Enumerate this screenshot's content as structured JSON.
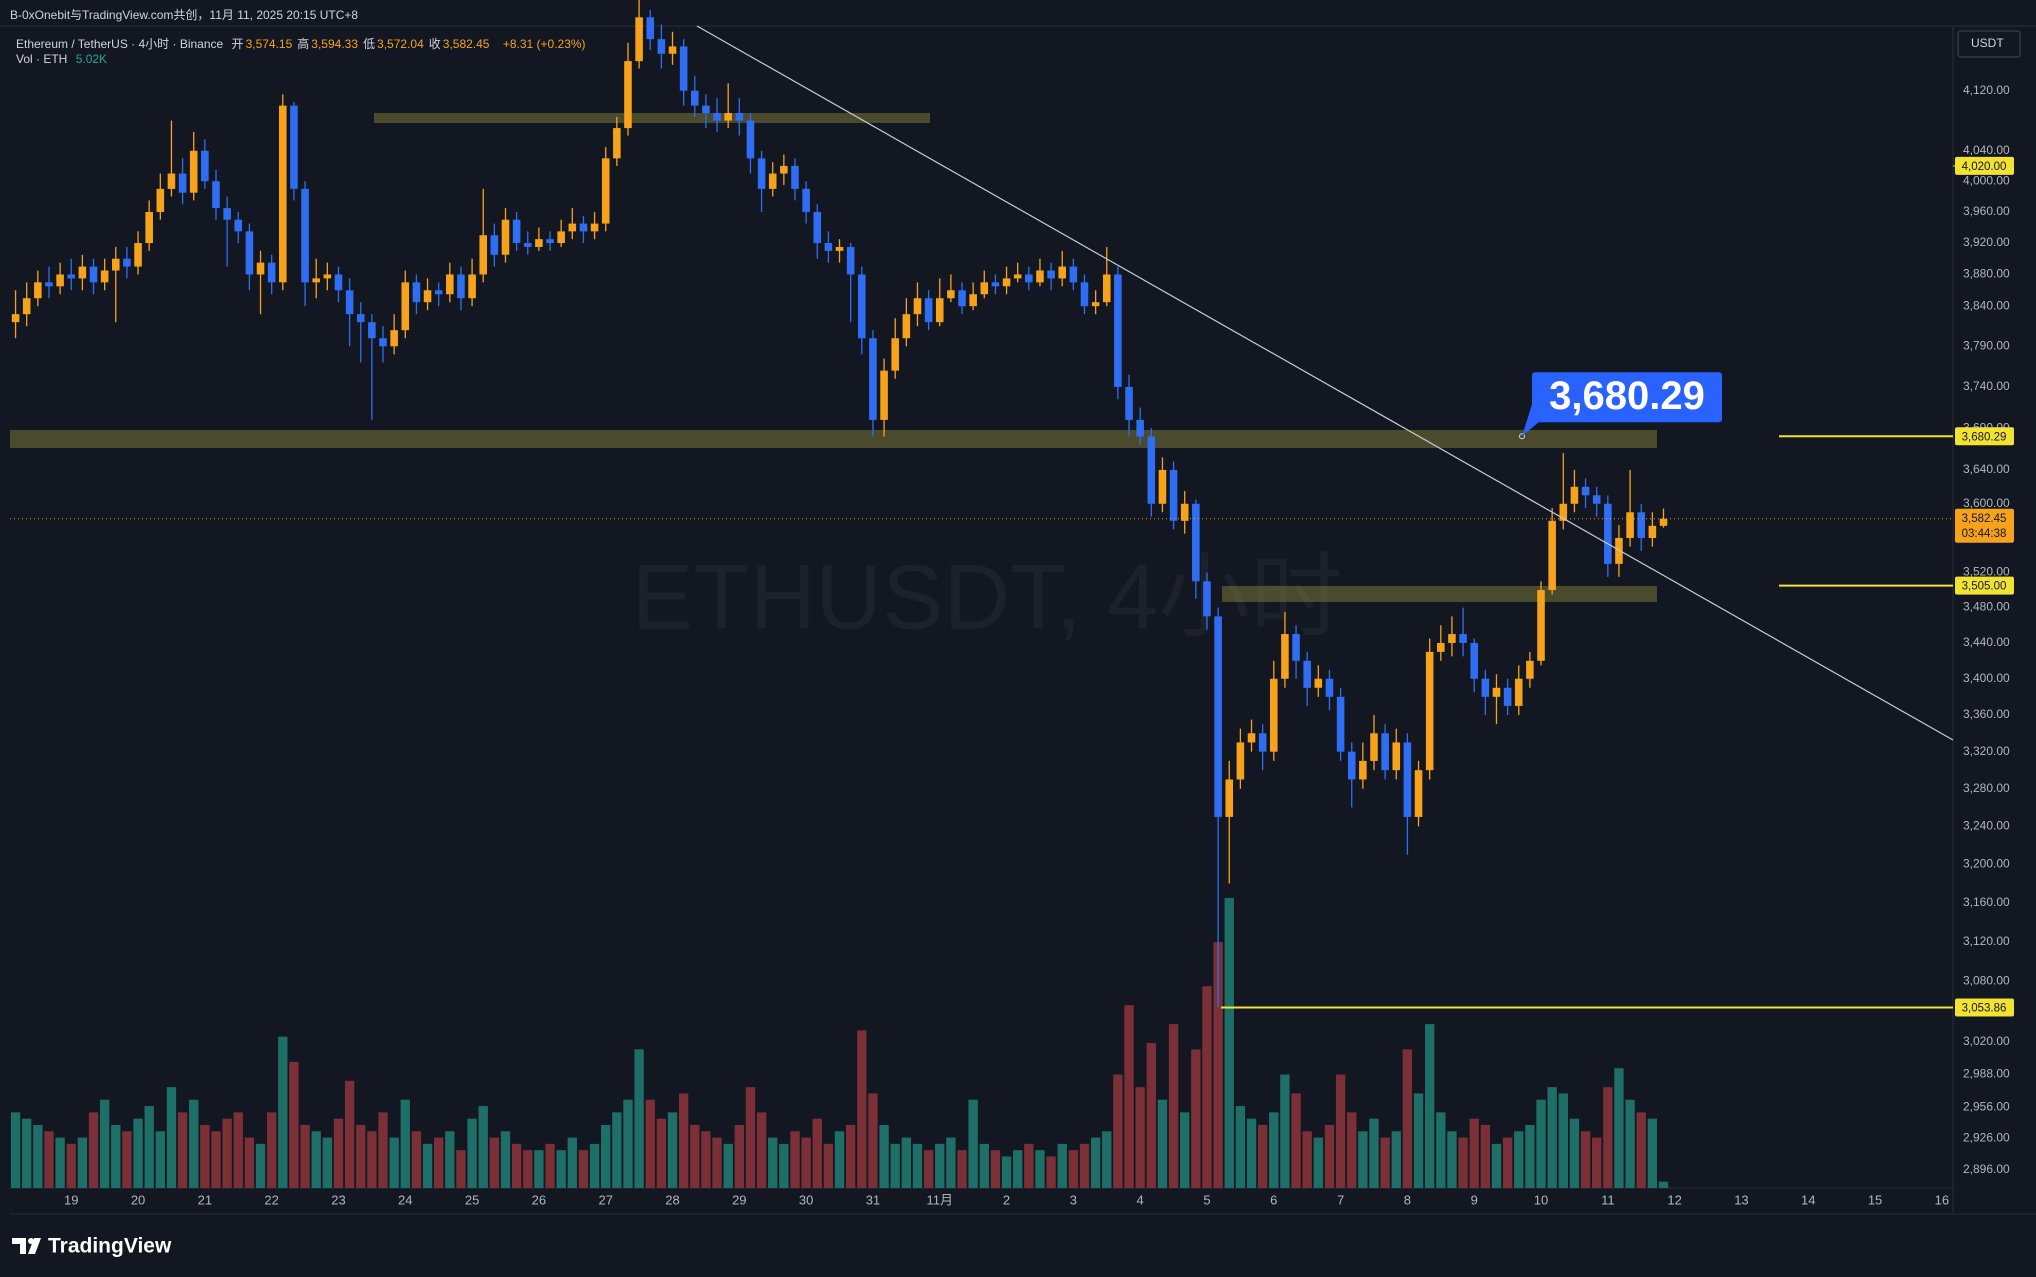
{
  "top_bar": "B-0xOnebit与TradingView.com共创，11月 11, 2025 20:15 UTC+8",
  "footer_logo": "TradingView",
  "chart_data": {
    "type": "candlestick",
    "symbol": "Ethereum / TetherUS · 4小时 · Binance",
    "ohlc_fields": [
      {
        "name": "开",
        "value": "3,574.15"
      },
      {
        "name": "高",
        "value": "3,594.33"
      },
      {
        "name": "低",
        "value": "3,572.04"
      },
      {
        "name": "收",
        "value": "3,582.45"
      }
    ],
    "change": "+8.31 (+0.23%)",
    "volume_title": "Vol · ETH",
    "volume_value_label": "5.02K",
    "watermark": "ETHUSDT, 4小时",
    "currency": "USDT",
    "log_scale": true,
    "grid": false,
    "colors": {
      "up": "#f7a21b",
      "down": "#2f6ef2",
      "volume_up": "#1e6f68",
      "volume_down": "#7b2f37",
      "level": "#f2e232",
      "last": "#f7a21b",
      "callout": "#2962ff"
    },
    "open": [
      3820,
      3830,
      3850,
      3870,
      3865,
      3880,
      3875,
      3890,
      3870,
      3885,
      3900,
      3890,
      3920,
      3960,
      3990,
      4010,
      3985,
      4040,
      4000,
      3965,
      3950,
      3935,
      3880,
      3895,
      3870,
      4100,
      3990,
      3870,
      3875,
      3880,
      3860,
      3830,
      3820,
      3800,
      3790,
      3810,
      3870,
      3845,
      3860,
      3855,
      3880,
      3850,
      3880,
      3930,
      3905,
      3950,
      3920,
      3915,
      3925,
      3920,
      3935,
      3945,
      3935,
      3945,
      4030,
      4070,
      4160,
      4220,
      4190,
      4170,
      4180,
      4120,
      4100,
      4090,
      4080,
      4090,
      4080,
      4030,
      3990,
      4010,
      4020,
      3990,
      3960,
      3920,
      3910,
      3915,
      3880,
      3800,
      3700,
      3760,
      3800,
      3830,
      3850,
      3820,
      3850,
      3860,
      3840,
      3855,
      3870,
      3865,
      3875,
      3880,
      3870,
      3885,
      3875,
      3890,
      3870,
      3840,
      3845,
      3880,
      3740,
      3700,
      3680,
      3600,
      3640,
      3580,
      3600,
      3510,
      3470,
      3250,
      3290,
      3330,
      3340,
      3320,
      3400,
      3450,
      3420,
      3390,
      3400,
      3380,
      3320,
      3290,
      3310,
      3340,
      3300,
      3330,
      3250,
      3300,
      3430,
      3440,
      3450,
      3440,
      3400,
      3380,
      3390,
      3370,
      3400,
      3420,
      3500,
      3580,
      3600,
      3620,
      3610,
      3600,
      3530,
      3560,
      3590,
      3560,
      3574.15
    ],
    "high": [
      3860,
      3870,
      3885,
      3890,
      3895,
      3900,
      3905,
      3900,
      3900,
      3915,
      3915,
      3935,
      3975,
      4010,
      4080,
      4030,
      4065,
      4055,
      4015,
      3980,
      3960,
      3945,
      3910,
      3905,
      4115,
      4105,
      4000,
      3900,
      3895,
      3890,
      3875,
      3845,
      3830,
      3815,
      3830,
      3885,
      3880,
      3875,
      3870,
      3895,
      3890,
      3900,
      3990,
      3945,
      3965,
      3960,
      3935,
      3940,
      3935,
      3950,
      3965,
      3955,
      3960,
      4045,
      4085,
      4185,
      4250,
      4230,
      4210,
      4200,
      4190,
      4140,
      4115,
      4110,
      4130,
      4110,
      4090,
      4040,
      4025,
      4035,
      4030,
      4000,
      3970,
      3935,
      3925,
      3920,
      3890,
      3810,
      3775,
      3825,
      3850,
      3870,
      3860,
      3875,
      3880,
      3870,
      3870,
      3885,
      3880,
      3890,
      3895,
      3890,
      3900,
      3895,
      3910,
      3900,
      3880,
      3860,
      3915,
      3890,
      3755,
      3715,
      3690,
      3655,
      3650,
      3615,
      3605,
      3520,
      3480,
      3310,
      3345,
      3355,
      3350,
      3420,
      3475,
      3460,
      3430,
      3415,
      3410,
      3390,
      3330,
      3330,
      3360,
      3350,
      3345,
      3340,
      3310,
      3445,
      3460,
      3470,
      3480,
      3445,
      3410,
      3405,
      3400,
      3415,
      3430,
      3510,
      3595,
      3660,
      3640,
      3630,
      3620,
      3610,
      3575,
      3640,
      3600,
      3590,
      3594.33
    ],
    "low": [
      3800,
      3815,
      3840,
      3850,
      3855,
      3860,
      3860,
      3855,
      3860,
      3820,
      3875,
      3880,
      3910,
      3950,
      3980,
      3970,
      3975,
      3990,
      3950,
      3890,
      3920,
      3860,
      3830,
      3855,
      3860,
      3975,
      3840,
      3850,
      3860,
      3845,
      3790,
      3770,
      3700,
      3770,
      3780,
      3800,
      3830,
      3835,
      3840,
      3845,
      3835,
      3840,
      3870,
      3890,
      3895,
      3910,
      3905,
      3910,
      3910,
      3915,
      3925,
      3920,
      3925,
      3935,
      4020,
      4060,
      4150,
      4175,
      4150,
      4155,
      4100,
      4085,
      4070,
      4065,
      4070,
      4060,
      4010,
      3960,
      3980,
      3995,
      3975,
      3945,
      3900,
      3895,
      3895,
      3820,
      3780,
      3680,
      3680,
      3750,
      3790,
      3815,
      3810,
      3815,
      3845,
      3830,
      3835,
      3850,
      3855,
      3855,
      3870,
      3860,
      3865,
      3860,
      3865,
      3860,
      3830,
      3830,
      3840,
      3725,
      3680,
      3670,
      3585,
      3590,
      3570,
      3565,
      3490,
      3455,
      3053.86,
      3180,
      3280,
      3320,
      3300,
      3310,
      3390,
      3400,
      3370,
      3380,
      3365,
      3310,
      3260,
      3280,
      3300,
      3290,
      3290,
      3210,
      3240,
      3290,
      3420,
      3425,
      3425,
      3385,
      3360,
      3350,
      3360,
      3360,
      3390,
      3415,
      3495,
      3570,
      3590,
      3595,
      3585,
      3515,
      3515,
      3550,
      3545,
      3550,
      3572.04
    ],
    "close": [
      3830,
      3850,
      3870,
      3865,
      3880,
      3875,
      3890,
      3870,
      3885,
      3900,
      3890,
      3920,
      3960,
      3990,
      4010,
      3985,
      4040,
      4000,
      3965,
      3950,
      3935,
      3880,
      3895,
      3870,
      4100,
      3990,
      3870,
      3875,
      3880,
      3860,
      3830,
      3820,
      3800,
      3790,
      3810,
      3870,
      3845,
      3860,
      3855,
      3880,
      3850,
      3880,
      3930,
      3905,
      3950,
      3920,
      3915,
      3925,
      3920,
      3935,
      3945,
      3935,
      3945,
      4030,
      4070,
      4160,
      4220,
      4190,
      4170,
      4180,
      4120,
      4100,
      4090,
      4080,
      4090,
      4080,
      4030,
      3990,
      4010,
      4020,
      3990,
      3960,
      3920,
      3910,
      3915,
      3880,
      3800,
      3700,
      3760,
      3800,
      3830,
      3850,
      3820,
      3850,
      3860,
      3840,
      3855,
      3870,
      3865,
      3875,
      3880,
      3870,
      3885,
      3875,
      3890,
      3870,
      3840,
      3845,
      3880,
      3740,
      3700,
      3680,
      3600,
      3640,
      3580,
      3600,
      3510,
      3470,
      3250,
      3290,
      3330,
      3340,
      3320,
      3400,
      3450,
      3420,
      3390,
      3400,
      3380,
      3320,
      3290,
      3310,
      3340,
      3300,
      3330,
      3250,
      3300,
      3430,
      3440,
      3450,
      3440,
      3400,
      3380,
      3390,
      3370,
      3400,
      3420,
      3500,
      3580,
      3600,
      3620,
      3610,
      3600,
      3530,
      3560,
      3590,
      3560,
      3574.15,
      3582.45
    ],
    "volume": [
      60,
      55,
      50,
      45,
      40,
      35,
      40,
      60,
      70,
      50,
      45,
      55,
      65,
      45,
      80,
      60,
      70,
      50,
      45,
      55,
      60,
      40,
      35,
      60,
      120,
      100,
      50,
      45,
      40,
      55,
      85,
      50,
      45,
      60,
      40,
      70,
      45,
      35,
      40,
      45,
      30,
      55,
      65,
      40,
      45,
      35,
      30,
      30,
      35,
      30,
      40,
      30,
      35,
      50,
      60,
      70,
      110,
      70,
      55,
      60,
      75,
      50,
      45,
      40,
      35,
      50,
      80,
      60,
      40,
      35,
      45,
      40,
      55,
      35,
      45,
      50,
      125,
      75,
      50,
      35,
      40,
      35,
      30,
      35,
      40,
      30,
      70,
      35,
      30,
      25,
      30,
      35,
      30,
      25,
      35,
      30,
      35,
      40,
      45,
      90,
      145,
      80,
      115,
      70,
      130,
      60,
      110,
      160,
      195,
      230,
      65,
      55,
      50,
      60,
      90,
      75,
      45,
      40,
      50,
      90,
      60,
      45,
      55,
      40,
      45,
      110,
      75,
      130,
      60,
      45,
      40,
      55,
      50,
      35,
      40,
      45,
      50,
      70,
      80,
      75,
      55,
      45,
      40,
      80,
      95,
      70,
      60,
      55,
      5.02
    ],
    "ylim": [
      2879,
      4208
    ],
    "yticks": [
      {
        "value": 4120,
        "label": "4,120.00"
      },
      {
        "value": 4040,
        "label": "4,040.00"
      },
      {
        "value": 4000,
        "label": "4,000.00"
      },
      {
        "value": 3960,
        "label": "3,960.00"
      },
      {
        "value": 3920,
        "label": "3,920.00"
      },
      {
        "value": 3880,
        "label": "3,880.00"
      },
      {
        "value": 3840,
        "label": "3,840.00"
      },
      {
        "value": 3790,
        "label": "3,790.00"
      },
      {
        "value": 3740,
        "label": "3,740.00"
      },
      {
        "value": 3690,
        "label": "3,690.00"
      },
      {
        "value": 3640,
        "label": "3,640.00"
      },
      {
        "value": 3600,
        "label": "3,600.00"
      },
      {
        "value": 3520,
        "label": "3,520.00"
      },
      {
        "value": 3480,
        "label": "3,480.00"
      },
      {
        "value": 3440,
        "label": "3,440.00"
      },
      {
        "value": 3400,
        "label": "3,400.00"
      },
      {
        "value": 3360,
        "label": "3,360.00"
      },
      {
        "value": 3320,
        "label": "3,320.00"
      },
      {
        "value": 3280,
        "label": "3,280.00"
      },
      {
        "value": 3240,
        "label": "3,240.00"
      },
      {
        "value": 3200,
        "label": "3,200.00"
      },
      {
        "value": 3160,
        "label": "3,160.00"
      },
      {
        "value": 3120,
        "label": "3,120.00"
      },
      {
        "value": 3080,
        "label": "3,080.00"
      },
      {
        "value": 3020,
        "label": "3,020.00"
      },
      {
        "value": 2988,
        "label": "2,988.00"
      },
      {
        "value": 2956,
        "label": "2,956.00"
      },
      {
        "value": 2926,
        "label": "2,926.00"
      },
      {
        "value": 2896,
        "label": "2,896.00"
      }
    ],
    "xlim": [
      -0.5,
      174
    ],
    "xticks": [
      {
        "value": 5,
        "label": "19"
      },
      {
        "value": 11,
        "label": "20"
      },
      {
        "value": 17,
        "label": "21"
      },
      {
        "value": 23,
        "label": "22"
      },
      {
        "value": 29,
        "label": "23"
      },
      {
        "value": 35,
        "label": "24"
      },
      {
        "value": 41,
        "label": "25"
      },
      {
        "value": 47,
        "label": "26"
      },
      {
        "value": 53,
        "label": "27"
      },
      {
        "value": 59,
        "label": "28"
      },
      {
        "value": 65,
        "label": "29"
      },
      {
        "value": 71,
        "label": "30"
      },
      {
        "value": 77,
        "label": "31"
      },
      {
        "value": 83,
        "label": "11月"
      },
      {
        "value": 89,
        "label": "2"
      },
      {
        "value": 95,
        "label": "3"
      },
      {
        "value": 101,
        "label": "4"
      },
      {
        "value": 107,
        "label": "5"
      },
      {
        "value": 113,
        "label": "6"
      },
      {
        "value": 119,
        "label": "7"
      },
      {
        "value": 125,
        "label": "8"
      },
      {
        "value": 131,
        "label": "9"
      },
      {
        "value": 137,
        "label": "10"
      },
      {
        "value": 143,
        "label": "11"
      },
      {
        "value": 149,
        "label": "12"
      },
      {
        "value": 155,
        "label": "13"
      },
      {
        "value": 161,
        "label": "14"
      },
      {
        "value": 167,
        "label": "15"
      },
      {
        "value": 173,
        "label": "16"
      }
    ],
    "price_lines": [
      {
        "value": 3680.29,
        "label": "3,680.29"
      },
      {
        "value": 3505,
        "label": "3,505.00"
      },
      {
        "value": 3053.86,
        "label": "3,053.86"
      }
    ],
    "alert_marker": {
      "value": 4020,
      "label": "4,020.00"
    },
    "last_price": {
      "label": "3,582.45",
      "countdown": "03:44:38"
    },
    "callout_label": "3,680.29"
  }
}
